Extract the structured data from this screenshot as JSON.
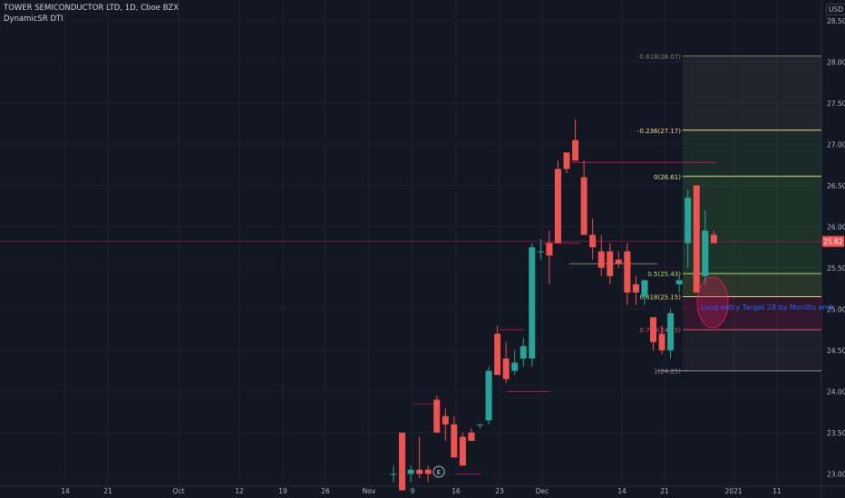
{
  "header": {
    "title": "TOWER SEMICONDUCTOR LTD, 1D, Cboe BZX",
    "indicator": "DynamicSR DTI",
    "currency": "USD"
  },
  "price_axis": {
    "ticks": [
      "28.50",
      "28.00",
      "27.50",
      "27.00",
      "26.50",
      "26.00",
      "25.50",
      "25.00",
      "24.50",
      "24.00",
      "23.50",
      "23.00"
    ],
    "last_price": "25.82",
    "last_price_color": "#f05350"
  },
  "time_axis": {
    "ticks": [
      "14",
      "21",
      "Oct",
      "12",
      "19",
      "26",
      "Nov",
      "9",
      "16",
      "23",
      "Dec",
      "14",
      "21",
      "2021",
      "11"
    ]
  },
  "fibonacci": {
    "levels": [
      {
        "label": "-0.618(28.07)",
        "price": 28.07,
        "color": "#808080"
      },
      {
        "label": "-0.236(27.17)",
        "price": 27.17,
        "color": "#e8d98a"
      },
      {
        "label": "0(26.61)",
        "price": 26.61,
        "color": "#d5e88a"
      },
      {
        "label": "0.5(25.43)",
        "price": 25.43,
        "color": "#a8e06a"
      },
      {
        "label": "0.618(25.15)",
        "price": 25.15,
        "color": "#e8d98a"
      },
      {
        "label": "0.786(24.75)",
        "price": 24.75,
        "color": "#e0506a"
      },
      {
        "label": "1(24.25)",
        "price": 24.25,
        "color": "#8a8a8a"
      }
    ]
  },
  "annotation": {
    "text": "Long entry Target 28 by Months end",
    "color": "#2962ff"
  },
  "earnings_marker": "E",
  "colors": {
    "up": "#26a69a",
    "down": "#ef5350",
    "background": "#131722",
    "grid": "#1e222d"
  },
  "chart_data": {
    "type": "candlestick",
    "title": "TOWER SEMICONDUCTOR LTD, 1D, Cboe BZX",
    "ylim": [
      22.85,
      28.75
    ],
    "candles": [
      {
        "o": 23.0,
        "h": 23.1,
        "l": 22.9,
        "c": 23.0
      },
      {
        "o": 23.5,
        "h": 23.5,
        "l": 22.8,
        "c": 22.8
      },
      {
        "o": 23.0,
        "h": 23.1,
        "l": 22.9,
        "c": 23.05
      },
      {
        "o": 23.05,
        "h": 23.45,
        "l": 22.95,
        "c": 23.0
      },
      {
        "o": 23.05,
        "h": 23.1,
        "l": 22.9,
        "c": 23.0
      },
      {
        "o": 23.9,
        "h": 23.95,
        "l": 23.5,
        "c": 23.5
      },
      {
        "o": 23.7,
        "h": 23.8,
        "l": 23.4,
        "c": 23.6
      },
      {
        "o": 23.6,
        "h": 23.7,
        "l": 23.2,
        "c": 23.2
      },
      {
        "o": 23.45,
        "h": 23.5,
        "l": 23.1,
        "c": 23.1
      },
      {
        "o": 23.5,
        "h": 23.55,
        "l": 23.4,
        "c": 23.4
      },
      {
        "o": 23.6,
        "h": 23.6,
        "l": 23.55,
        "c": 23.6
      },
      {
        "o": 23.65,
        "h": 24.3,
        "l": 23.6,
        "c": 24.25
      },
      {
        "o": 24.7,
        "h": 24.8,
        "l": 24.2,
        "c": 24.2
      },
      {
        "o": 24.4,
        "h": 24.6,
        "l": 24.1,
        "c": 24.15
      },
      {
        "o": 24.25,
        "h": 24.5,
        "l": 24.2,
        "c": 24.35
      },
      {
        "o": 24.4,
        "h": 24.65,
        "l": 24.3,
        "c": 24.55
      },
      {
        "o": 24.4,
        "h": 25.8,
        "l": 24.3,
        "c": 25.75
      },
      {
        "o": 25.7,
        "h": 25.85,
        "l": 25.6,
        "c": 25.7
      },
      {
        "o": 25.8,
        "h": 25.95,
        "l": 25.3,
        "c": 25.65
      },
      {
        "o": 26.7,
        "h": 26.8,
        "l": 25.8,
        "c": 25.8
      },
      {
        "o": 26.9,
        "h": 26.9,
        "l": 26.65,
        "c": 26.7
      },
      {
        "o": 27.05,
        "h": 27.3,
        "l": 26.8,
        "c": 26.8
      },
      {
        "o": 26.6,
        "h": 26.8,
        "l": 25.9,
        "c": 25.9
      },
      {
        "o": 25.9,
        "h": 26.1,
        "l": 25.6,
        "c": 25.75
      },
      {
        "o": 25.7,
        "h": 25.9,
        "l": 25.4,
        "c": 25.5
      },
      {
        "o": 25.7,
        "h": 25.8,
        "l": 25.3,
        "c": 25.4
      },
      {
        "o": 25.6,
        "h": 25.7,
        "l": 25.5,
        "c": 25.55
      },
      {
        "o": 25.7,
        "h": 25.8,
        "l": 25.05,
        "c": 25.2
      },
      {
        "o": 25.3,
        "h": 25.4,
        "l": 25.05,
        "c": 25.2
      },
      {
        "o": 25.15,
        "h": 25.35,
        "l": 25.05,
        "c": 25.35
      },
      {
        "o": 24.9,
        "h": 24.9,
        "l": 24.5,
        "c": 24.6
      },
      {
        "o": 24.7,
        "h": 24.8,
        "l": 24.45,
        "c": 24.5
      },
      {
        "o": 24.5,
        "h": 25.0,
        "l": 24.4,
        "c": 24.95
      },
      {
        "o": 25.3,
        "h": 25.4,
        "l": 25.2,
        "c": 25.35
      },
      {
        "o": 25.8,
        "h": 26.45,
        "l": 25.5,
        "c": 26.35
      },
      {
        "o": 26.5,
        "h": 26.5,
        "l": 25.2,
        "c": 25.2
      },
      {
        "o": 25.4,
        "h": 26.2,
        "l": 25.3,
        "c": 25.95
      },
      {
        "o": 25.9,
        "h": 25.95,
        "l": 25.8,
        "c": 25.8
      }
    ]
  }
}
